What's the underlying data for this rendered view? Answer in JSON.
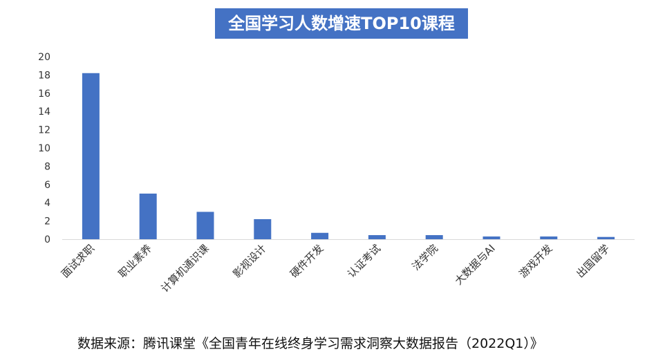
{
  "chart_data": {
    "type": "bar",
    "title": "全国学习人数增速TOP10课程",
    "categories": [
      "面试求职",
      "职业素养",
      "计算机通识课",
      "影视设计",
      "硬件开发",
      "认证考试",
      "法学院",
      "大数据与AI",
      "游戏开发",
      "出国留学"
    ],
    "values": [
      18.2,
      5.0,
      3.0,
      2.2,
      0.7,
      0.45,
      0.45,
      0.3,
      0.3,
      0.25
    ],
    "ylim": [
      0,
      20
    ],
    "yticks": [
      "0",
      "2",
      "4",
      "6",
      "8",
      "10",
      "12",
      "14",
      "16",
      "18",
      "20"
    ],
    "xlabel": "",
    "ylabel": "",
    "grid": false,
    "legend": "none",
    "bar_color": "#4472c4",
    "axis_color": "#d9d9d9"
  },
  "source_note": "数据来源：腾讯课堂《全国青年在线终身学习需求洞察大数据报告（2022Q1）》"
}
